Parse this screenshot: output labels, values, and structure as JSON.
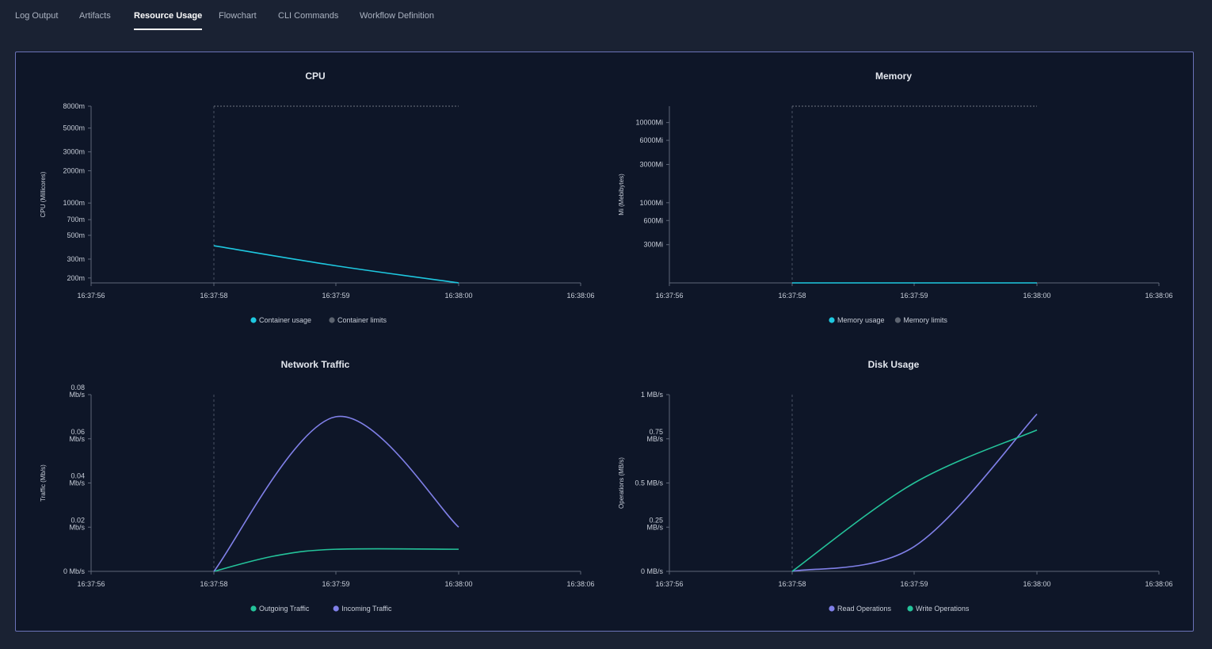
{
  "tabs": [
    {
      "label": "Log Output"
    },
    {
      "label": "Artifacts"
    },
    {
      "label": "Resource Usage",
      "active": true
    },
    {
      "label": "Flowchart"
    },
    {
      "label": "CLI Commands"
    },
    {
      "label": "Workflow Definition"
    }
  ],
  "colors": {
    "cyan": "#1ec8e0",
    "green": "#24c39a",
    "purple": "#8080e8",
    "gray": "#5d6470"
  },
  "chart_data": [
    {
      "id": "cpu",
      "type": "line",
      "title": "CPU",
      "ylabel": "CPU (Millicores)",
      "yscale": "log",
      "ylim": [
        180,
        8000
      ],
      "yticks": [
        {
          "v": 8000,
          "label": "8000m"
        },
        {
          "v": 5000,
          "label": "5000m"
        },
        {
          "v": 3000,
          "label": "3000m"
        },
        {
          "v": 2000,
          "label": "2000m"
        },
        {
          "v": 1000,
          "label": "1000m"
        },
        {
          "v": 700,
          "label": "700m"
        },
        {
          "v": 500,
          "label": "500m"
        },
        {
          "v": 300,
          "label": "300m"
        },
        {
          "v": 200,
          "label": "200m"
        }
      ],
      "xticks": [
        "16:37:56",
        "16:37:58",
        "16:37:59",
        "16:38:00",
        "16:38:06"
      ],
      "limit_line": true,
      "series": [
        {
          "name": "Container usage",
          "color": "#1ec8e0",
          "x": [
            1,
            2,
            3
          ],
          "y": [
            400,
            260,
            180
          ]
        }
      ],
      "legend": [
        {
          "label": "Container usage",
          "color": "#1ec8e0"
        },
        {
          "label": "Container limits",
          "color": "#5d6470"
        }
      ]
    },
    {
      "id": "memory",
      "type": "line",
      "title": "Memory",
      "ylabel": "Mi (Mebibytes)",
      "yscale": "log",
      "ylim": [
        100,
        16000
      ],
      "yticks": [
        {
          "v": 10000,
          "label": "10000Mi"
        },
        {
          "v": 6000,
          "label": "6000Mi"
        },
        {
          "v": 3000,
          "label": "3000Mi"
        },
        {
          "v": 1000,
          "label": "1000Mi"
        },
        {
          "v": 600,
          "label": "600Mi"
        },
        {
          "v": 300,
          "label": "300Mi"
        }
      ],
      "xticks": [
        "16:37:56",
        "16:37:58",
        "16:37:59",
        "16:38:00",
        "16:38:06"
      ],
      "limit_line": true,
      "series": [
        {
          "name": "Memory usage",
          "color": "#1ec8e0",
          "x": [
            1,
            2,
            3
          ],
          "y": [
            100,
            100,
            100
          ]
        }
      ],
      "legend": [
        {
          "label": "Memory usage",
          "color": "#1ec8e0"
        },
        {
          "label": "Memory limits",
          "color": "#5d6470"
        }
      ]
    },
    {
      "id": "network",
      "type": "line",
      "title": "Network Traffic",
      "ylabel": "Traffic (Mb/s)",
      "yscale": "linear",
      "ylim": [
        0,
        0.08
      ],
      "yticks": [
        {
          "v": 0.08,
          "label": "0.08\nMb/s"
        },
        {
          "v": 0.06,
          "label": "0.06\nMb/s"
        },
        {
          "v": 0.04,
          "label": "0.04\nMb/s"
        },
        {
          "v": 0.02,
          "label": "0.02\nMb/s"
        },
        {
          "v": 0,
          "label": "0 Mb/s"
        }
      ],
      "xticks": [
        "16:37:56",
        "16:37:58",
        "16:37:59",
        "16:38:00",
        "16:38:06"
      ],
      "limit_line": false,
      "series": [
        {
          "name": "Outgoing Traffic",
          "color": "#24c39a",
          "x": [
            1,
            1.5,
            2,
            3
          ],
          "y": [
            0,
            0.007,
            0.01,
            0.01
          ]
        },
        {
          "name": "Incoming Traffic",
          "color": "#8080e8",
          "x": [
            1,
            2,
            3
          ],
          "y": [
            0,
            0.07,
            0.02
          ]
        }
      ],
      "legend": [
        {
          "label": "Outgoing Traffic",
          "color": "#24c39a"
        },
        {
          "label": "Incoming Traffic",
          "color": "#8080e8"
        }
      ]
    },
    {
      "id": "disk",
      "type": "line",
      "title": "Disk Usage",
      "ylabel": "Operations (MB/s)",
      "yscale": "linear",
      "ylim": [
        0,
        1
      ],
      "yticks": [
        {
          "v": 1,
          "label": "1 MB/s"
        },
        {
          "v": 0.75,
          "label": "0.75\nMB/s"
        },
        {
          "v": 0.5,
          "label": "0.5 MB/s"
        },
        {
          "v": 0.25,
          "label": "0.25\nMB/s"
        },
        {
          "v": 0,
          "label": "0 MB/s"
        }
      ],
      "xticks": [
        "16:37:56",
        "16:37:58",
        "16:37:59",
        "16:38:00",
        "16:38:06"
      ],
      "limit_line": false,
      "series": [
        {
          "name": "Read Operations",
          "color": "#8080e8",
          "x": [
            1,
            2,
            3
          ],
          "y": [
            0,
            0.14,
            0.89
          ]
        },
        {
          "name": "Write Operations",
          "color": "#24c39a",
          "x": [
            1,
            2,
            3
          ],
          "y": [
            0,
            0.5,
            0.8
          ]
        }
      ],
      "legend": [
        {
          "label": "Read Operations",
          "color": "#8080e8"
        },
        {
          "label": "Write Operations",
          "color": "#24c39a"
        }
      ]
    }
  ]
}
